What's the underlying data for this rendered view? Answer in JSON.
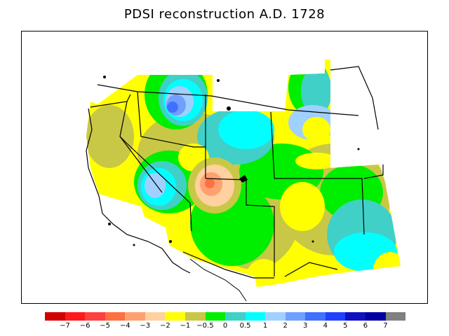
{
  "title": "PDSI reconstruction A.D. 1728",
  "colors": {
    "c_m7": "#d00000",
    "c_m6": "#ff1a1a",
    "c_m5": "#ff4040",
    "c_m4": "#ff7040",
    "c_m3": "#ffa070",
    "c_m2": "#ffd0a0",
    "c_m1": "#ffff00",
    "c_m05": "#c8c846",
    "c_0": "#00ee00",
    "c_05": "#40d0c8",
    "c_1": "#00ffff",
    "c_2": "#a0d0ff",
    "c_3": "#70a0ff",
    "c_4": "#4070ff",
    "c_5": "#2040ff",
    "c_6": "#1010c0",
    "c_7": "#0000a0",
    "c_gray": "#808080"
  },
  "legend": {
    "swatches": [
      "#d00000",
      "#ff1a1a",
      "#ff4040",
      "#ff7040",
      "#ffa070",
      "#ffd0a0",
      "#ffff00",
      "#c8c846",
      "#00ee00",
      "#40d0c8",
      "#00ffff",
      "#a0d0ff",
      "#70a0ff",
      "#4070ff",
      "#2040ff",
      "#1010c0",
      "#0000a0",
      "#808080"
    ],
    "labels": [
      "−7",
      "−6",
      "−5",
      "−4",
      "−3",
      "−2",
      "−1",
      "−0.5",
      "0",
      "0.5",
      "1",
      "2",
      "3",
      "4",
      "5",
      "6",
      "7"
    ]
  }
}
